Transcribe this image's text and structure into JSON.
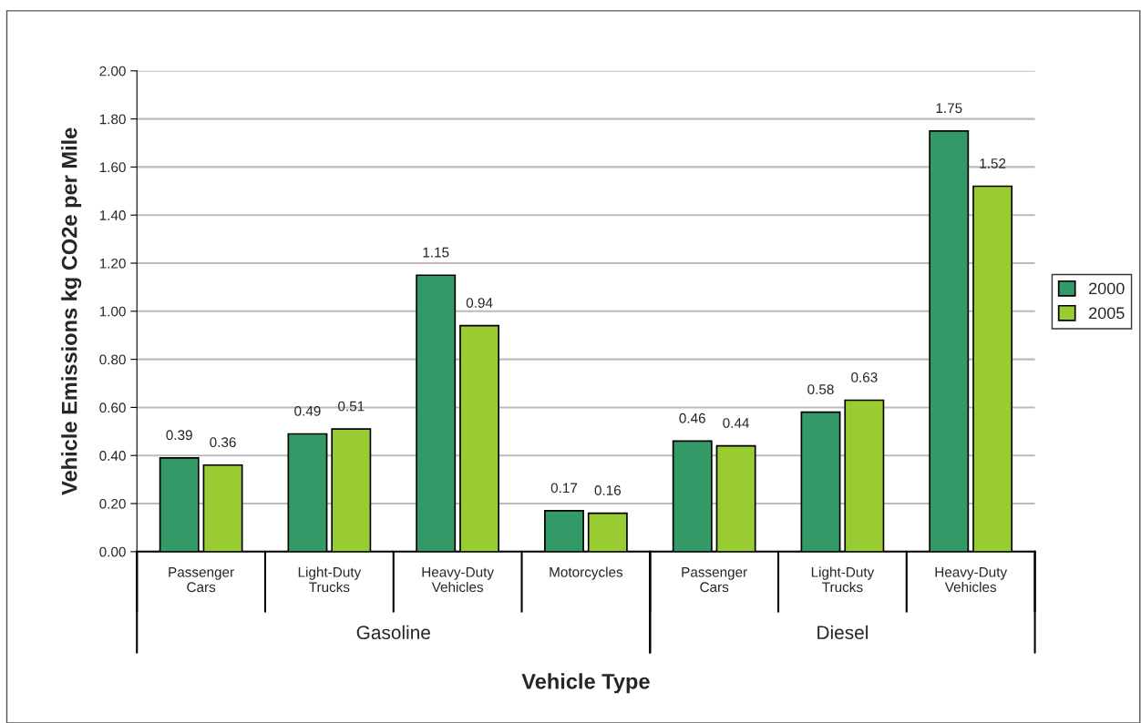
{
  "chart_data": {
    "type": "bar",
    "categories": [
      "Passenger\nCars",
      "Light-Duty\nTrucks",
      "Heavy-Duty\nVehicles",
      "Motorcycles",
      "Passenger\nCars",
      "Light-Duty\nTrucks",
      "Heavy-Duty\nVehicles"
    ],
    "series": [
      {
        "name": "2000",
        "color": "#339966",
        "values": [
          0.39,
          0.49,
          1.15,
          0.17,
          0.46,
          0.58,
          1.75
        ]
      },
      {
        "name": "2005",
        "color": "#99cc33",
        "values": [
          0.36,
          0.51,
          0.94,
          0.16,
          0.44,
          0.63,
          1.52
        ]
      }
    ],
    "ylim": [
      0,
      2
    ],
    "yticks": [
      {
        "value": 0,
        "label": "0.00"
      },
      {
        "value": 0.2,
        "label": "0.20"
      },
      {
        "value": 0.4,
        "label": "0.40"
      },
      {
        "value": 0.6,
        "label": "0.60"
      },
      {
        "value": 0.8,
        "label": "0.80"
      },
      {
        "value": 1.0,
        "label": "1.00"
      },
      {
        "value": 1.2,
        "label": "1.20"
      },
      {
        "value": 1.4,
        "label": "1.40"
      },
      {
        "value": 1.6,
        "label": "1.60"
      },
      {
        "value": 1.8,
        "label": "1.80"
      },
      {
        "value": 2.0,
        "label": "2.00"
      }
    ],
    "xlabel": "Vehicle Type",
    "ylabel": "Vehicle Emissions kg CO2e per Mile",
    "annotations": [
      "Gasoline",
      "Diesel"
    ],
    "data_labels": true,
    "grid": "y",
    "legend": "right"
  }
}
